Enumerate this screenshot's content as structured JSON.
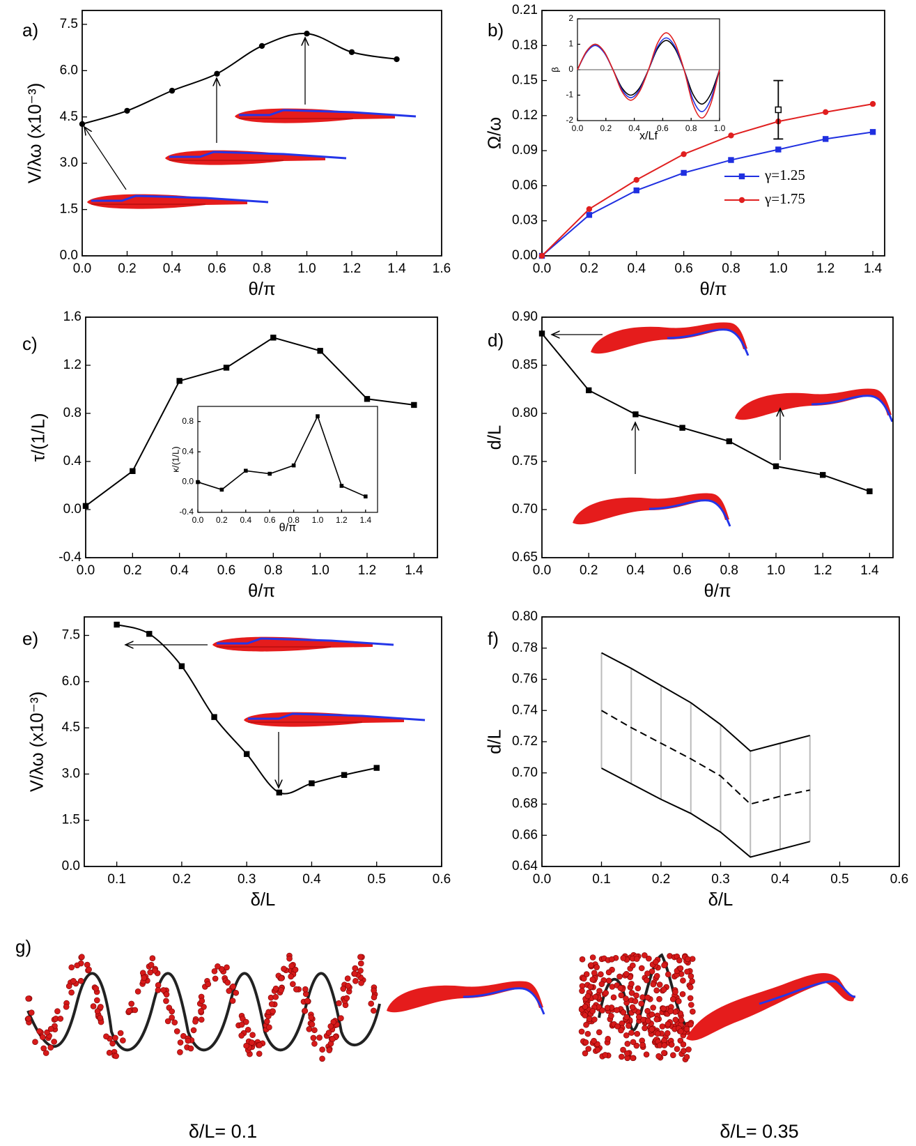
{
  "chart_data": [
    {
      "type": "line",
      "panel": "a)",
      "xlabel": "θ/π",
      "ylabel": "V/λω (x10⁻³)",
      "smooth": true,
      "x": [
        {
          "value": 0,
          "label": "0.0"
        },
        0.2,
        0.4,
        0.6,
        0.8,
        {
          "value": 1,
          "label": "1.0"
        },
        1.2,
        1.4
      ],
      "series": [
        {
          "color": "#000000",
          "marker": "circle",
          "values": [
            4.27,
            4.7,
            5.35,
            5.9,
            6.8,
            7.2,
            6.6,
            6.37
          ]
        }
      ],
      "xlim": [
        0,
        1.6
      ],
      "ylim": [
        0,
        7.95
      ],
      "xticks": [
        {
          "value": 0,
          "label": "0.0"
        },
        0.2,
        0.4,
        0.6,
        0.8,
        {
          "value": 1,
          "label": "1.0"
        },
        1.2,
        1.4,
        1.6
      ],
      "yticks": [
        {
          "value": 0,
          "label": "0.0"
        },
        1.5,
        {
          "value": 3,
          "label": "3.0"
        },
        4.5,
        {
          "value": 6,
          "label": "6.0"
        },
        7.5
      ]
    },
    {
      "type": "line",
      "panel": "b)",
      "xlabel": "θ/π",
      "ylabel": "Ω/ω",
      "smooth": false,
      "legend": "lower right",
      "x": [
        0,
        0.2,
        0.4,
        0.6,
        0.8,
        1,
        1.2,
        1.4
      ],
      "series": [
        {
          "name": "γ=1.25",
          "color": "#1f2fe0",
          "marker": "square",
          "values": [
            0,
            0.035,
            0.056,
            0.071,
            0.082,
            0.091,
            0.1,
            0.106
          ]
        },
        {
          "name": "γ=1.75",
          "color": "#e01f1f",
          "marker": "circle",
          "values": [
            0,
            0.04,
            0.065,
            0.087,
            0.103,
            0.115,
            0.123,
            0.13
          ]
        }
      ],
      "error_bar": {
        "x": 1,
        "y": 0.125,
        "error": 0.025
      },
      "xlim": [
        0,
        1.45
      ],
      "ylim": [
        0,
        0.21
      ],
      "xticks": [
        {
          "value": 0,
          "label": "0.0"
        },
        0.2,
        0.4,
        0.6,
        0.8,
        {
          "value": 1,
          "label": "1.0"
        },
        1.2,
        1.4
      ],
      "yticks": [
        {
          "value": 0,
          "label": "0.00"
        },
        0.03,
        0.06,
        0.09,
        0.12,
        0.15,
        0.18,
        0.21
      ]
    },
    {
      "type": "line",
      "xlabel": "x/Lf",
      "ylabel": "β",
      "smooth": true,
      "x": [
        0,
        0.0625,
        0.125,
        0.1875,
        0.25,
        0.3125,
        0.375,
        0.4375,
        0.5,
        0.5625,
        0.625,
        0.6875,
        0.75,
        0.8125,
        0.875,
        0.9375,
        1
      ],
      "series": [
        {
          "color": "#000000",
          "values": [
            0,
            0.71,
            1.0,
            0.71,
            0,
            -0.71,
            -1.0,
            -0.71,
            0,
            0.82,
            1.15,
            0.82,
            0,
            -0.96,
            -1.35,
            -0.96,
            0
          ]
        },
        {
          "color": "#1f2fe0",
          "values": [
            0,
            0.67,
            0.95,
            0.67,
            0,
            -0.78,
            -1.1,
            -0.78,
            0,
            0.89,
            1.25,
            0.89,
            0,
            -1.17,
            -1.65,
            -1.17,
            0
          ]
        },
        {
          "color": "#e01f1f",
          "values": [
            0,
            0.71,
            1.0,
            0.71,
            0,
            -0.85,
            -1.2,
            -0.85,
            0,
            1.03,
            1.45,
            1.03,
            0,
            -1.35,
            -1.9,
            -1.35,
            0
          ]
        }
      ],
      "zero_line": true,
      "xlim": [
        0,
        1
      ],
      "ylim": [
        -2,
        2
      ],
      "xticks": [
        {
          "value": 0,
          "label": "0.0"
        },
        0.2,
        0.4,
        0.6,
        0.8,
        {
          "value": 1,
          "label": "1.0"
        }
      ],
      "yticks": [
        -2,
        -1,
        0,
        1,
        2
      ]
    },
    {
      "type": "line",
      "panel": "c)",
      "xlabel": "θ/π",
      "ylabel": "τ/(1/L)",
      "smooth": false,
      "x": [
        0,
        0.2,
        0.4,
        0.6,
        0.8,
        1,
        1.2,
        1.4
      ],
      "series": [
        {
          "color": "#000000",
          "marker": "square",
          "values": [
            0.03,
            0.32,
            1.07,
            1.18,
            1.43,
            1.32,
            0.92,
            0.87
          ]
        }
      ],
      "xlim": [
        0,
        1.5
      ],
      "ylim": [
        -0.4,
        1.6
      ],
      "xticks": [
        {
          "value": 0,
          "label": "0.0"
        },
        0.2,
        0.4,
        0.6,
        0.8,
        {
          "value": 1,
          "label": "1.0"
        },
        1.2,
        1.4
      ],
      "yticks": [
        -0.4,
        {
          "value": 0,
          "label": "0.0"
        },
        0.4,
        0.8,
        1.2,
        1.6
      ]
    },
    {
      "type": "line",
      "xlabel": "θ/π",
      "ylabel": "κ/(1/L)",
      "smooth": false,
      "x": [
        0,
        0.2,
        0.4,
        0.6,
        0.8,
        1,
        1.2,
        1.4
      ],
      "series": [
        {
          "color": "#000000",
          "marker": "square",
          "values": [
            0.0,
            -0.1,
            0.15,
            0.11,
            0.22,
            0.87,
            -0.05,
            -0.19
          ]
        }
      ],
      "xlim": [
        0,
        1.5
      ],
      "ylim": [
        -0.4,
        1.0
      ],
      "xticks": [
        {
          "value": 0,
          "label": "0.0"
        },
        0.2,
        0.4,
        0.6,
        0.8,
        {
          "value": 1,
          "label": "1.0"
        },
        1.2,
        1.4
      ],
      "yticks": [
        -0.4,
        {
          "value": 0,
          "label": "0.0"
        },
        0.4,
        0.8
      ]
    },
    {
      "type": "line",
      "panel": "d)",
      "xlabel": "θ/π",
      "ylabel": "d/L",
      "smooth": false,
      "x": [
        0,
        0.2,
        0.4,
        0.6,
        0.8,
        1,
        1.2,
        1.4
      ],
      "series": [
        {
          "color": "#000000",
          "marker": "square",
          "values": [
            0.883,
            0.824,
            0.799,
            0.785,
            0.771,
            0.745,
            0.736,
            0.719
          ]
        }
      ],
      "xlim": [
        0,
        1.5
      ],
      "ylim": [
        0.65,
        0.9
      ],
      "xticks": [
        {
          "value": 0,
          "label": "0.0"
        },
        0.2,
        0.4,
        0.6,
        0.8,
        {
          "value": 1,
          "label": "1.0"
        },
        1.2,
        1.4
      ],
      "yticks": [
        0.65,
        {
          "value": 0.7,
          "label": "0.70"
        },
        0.75,
        {
          "value": 0.8,
          "label": "0.80"
        },
        0.85,
        {
          "value": 0.9,
          "label": "0.90"
        }
      ]
    },
    {
      "type": "line",
      "panel": "e)",
      "xlabel": "δ/L",
      "ylabel": "V/λω (x10⁻³)",
      "smooth": true,
      "x": [
        0.1,
        0.15,
        0.2,
        0.25,
        0.3,
        0.35,
        0.4,
        0.45,
        0.5
      ],
      "series": [
        {
          "color": "#000000",
          "marker": "square",
          "values": [
            7.85,
            7.55,
            6.5,
            4.85,
            3.65,
            2.4,
            2.7,
            2.97,
            3.2
          ]
        }
      ],
      "xlim": [
        0.05,
        0.6
      ],
      "ylim": [
        0,
        8.1
      ],
      "xticks": [
        0.1,
        0.2,
        0.3,
        0.4,
        0.5,
        0.6
      ],
      "yticks": [
        {
          "value": 0,
          "label": "0.0"
        },
        1.5,
        {
          "value": 3,
          "label": "3.0"
        },
        4.5,
        {
          "value": 6,
          "label": "6.0"
        },
        7.5
      ]
    },
    {
      "type": "line",
      "panel": "f)",
      "xlabel": "δ/L",
      "ylabel": "d/L",
      "smooth": false,
      "range_lines": true,
      "x": [
        0.1,
        0.15,
        0.2,
        0.25,
        0.3,
        0.35,
        0.4,
        0.45
      ],
      "series": [
        {
          "color": "#000000",
          "values": [
            0.777,
            0.767,
            0.756,
            0.745,
            0.731,
            0.714,
            0.719,
            0.724
          ]
        },
        {
          "color": "#000000",
          "dash": true,
          "values": [
            0.74,
            0.729,
            0.719,
            0.709,
            0.698,
            0.68,
            0.685,
            0.689
          ]
        },
        {
          "color": "#000000",
          "values": [
            0.703,
            0.693,
            0.683,
            0.674,
            0.662,
            0.646,
            0.651,
            0.656
          ]
        }
      ],
      "xlim": [
        0,
        0.6
      ],
      "ylim": [
        0.64,
        0.8
      ],
      "xticks": [
        {
          "value": 0,
          "label": "0.0"
        },
        0.1,
        0.2,
        0.3,
        0.4,
        0.5,
        0.6
      ],
      "yticks": [
        0.64,
        0.66,
        0.68,
        {
          "value": 0.7,
          "label": "0.70"
        },
        0.72,
        0.74,
        0.76,
        0.78,
        {
          "value": 0.8,
          "label": "0.80"
        }
      ]
    }
  ],
  "panel_g": {
    "label": "g)",
    "captions": [
      "δ/L= 0.1",
      "δ/L= 0.35"
    ]
  }
}
